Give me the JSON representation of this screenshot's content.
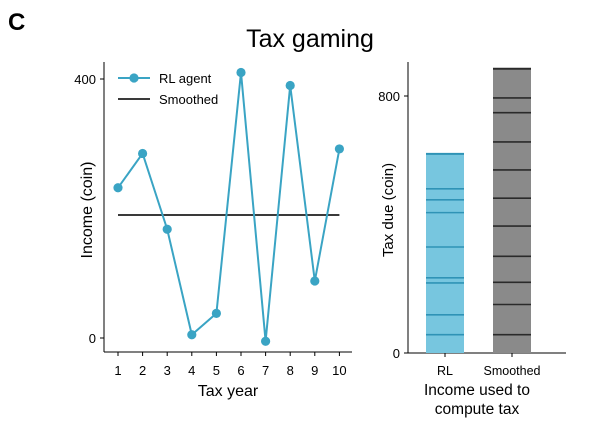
{
  "panel_label": "C",
  "title": "Tax gaming",
  "colors": {
    "rl": "#3aa4c4",
    "rl_fill": "#77c6df",
    "rl_bands": "#2f93b6",
    "smoothed": "#3a3a3a",
    "smoothed_fill": "#8a8a8a",
    "smoothed_bands": "#2a2a2a"
  },
  "chart_data": [
    {
      "type": "line",
      "xlabel": "Tax year",
      "ylabel": "Income (coin)",
      "x": [
        1,
        2,
        3,
        4,
        5,
        6,
        7,
        8,
        9,
        10
      ],
      "xticks": [
        "1",
        "2",
        "3",
        "4",
        "5",
        "6",
        "7",
        "8",
        "9",
        "10"
      ],
      "yticks": [
        0,
        400
      ],
      "ylim": [
        -25,
        430
      ],
      "legend_position": "top-left",
      "series": [
        {
          "name": "RL agent",
          "values": [
            232,
            285,
            168,
            5,
            38,
            410,
            -5,
            390,
            88,
            292
          ],
          "marker": "circle"
        },
        {
          "name": "Smoothed",
          "values": [
            190,
            190,
            190,
            190,
            190,
            190,
            190,
            190,
            190,
            190
          ],
          "marker": "none"
        }
      ]
    },
    {
      "type": "bar",
      "xlabel": "Income used to compute tax",
      "ylabel": "Tax due (coin)",
      "categories": [
        "RL",
        "Smoothed"
      ],
      "values": [
        620,
        885
      ],
      "yticks": [
        0,
        800
      ],
      "ylim": [
        0,
        920
      ],
      "segment_bounds": [
        [
          57,
          119,
          218,
          234,
          330,
          437,
          477,
          511
        ],
        [
          57,
          151,
          220,
          301,
          395,
          482,
          570,
          657,
          748,
          794
        ]
      ]
    }
  ]
}
